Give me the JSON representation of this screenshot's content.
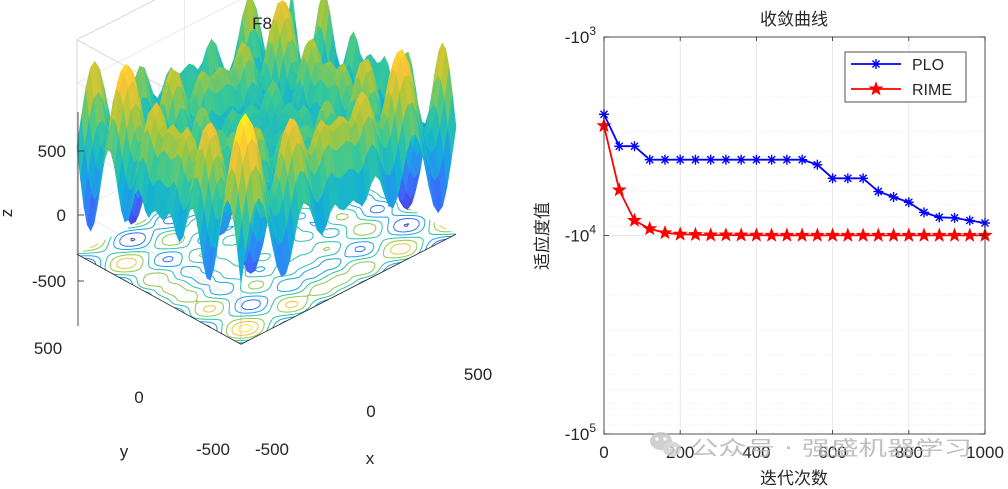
{
  "chart_data": [
    {
      "type": "surface",
      "title": "F8",
      "xlabel": "x",
      "ylabel": "y",
      "zlabel": "z",
      "xlim": [
        -500,
        500
      ],
      "ylim": [
        -500,
        500
      ],
      "zlim": [
        -837.97,
        837.97
      ],
      "x_ticks": [
        "-500",
        "0",
        "500"
      ],
      "y_ticks": [
        "-500",
        "0",
        "500"
      ],
      "z_ticks": [
        "-500",
        "0",
        "500"
      ],
      "function": "z = -x*sin(sqrt(|x|)) - y*sin(sqrt(|y|)) (Schwefel), surface with contour projection on floor",
      "colormap": "parula"
    },
    {
      "type": "line",
      "title": "收敛曲线",
      "xlabel": "迭代次数",
      "ylabel": "适应度值",
      "xlim": [
        0,
        1000
      ],
      "x_ticks": [
        "0",
        "200",
        "400",
        "600",
        "800",
        "1000"
      ],
      "y_ticks": [
        "-10^3",
        "-10^4",
        "-10^5"
      ],
      "y_scale": "log (negative values, magnitude increasing downward)",
      "grid": true,
      "legend_position": "top-right",
      "x": [
        0,
        40,
        80,
        120,
        160,
        200,
        240,
        280,
        320,
        360,
        400,
        440,
        480,
        520,
        560,
        600,
        640,
        680,
        720,
        760,
        800,
        840,
        880,
        920,
        960,
        1000
      ],
      "series": [
        {
          "name": "PLO",
          "color": "#0000ff",
          "marker": "asterisk",
          "values": [
            -2450,
            -3550,
            -3550,
            -4150,
            -4150,
            -4150,
            -4150,
            -4150,
            -4150,
            -4150,
            -4150,
            -4150,
            -4150,
            -4150,
            -4400,
            -5150,
            -5150,
            -5150,
            -6000,
            -6400,
            -6800,
            -7650,
            -8100,
            -8150,
            -8400,
            -8650
          ]
        },
        {
          "name": "RIME",
          "color": "#ff0000",
          "marker": "pentagram",
          "values": [
            -2800,
            -5900,
            -8400,
            -9250,
            -9700,
            -9850,
            -9900,
            -9950,
            -9950,
            -9960,
            -9970,
            -9980,
            -9980,
            -9980,
            -9985,
            -9990,
            -9990,
            -9990,
            -9990,
            -9990,
            -9990,
            -9990,
            -9990,
            -9990,
            -9990,
            -9990
          ]
        }
      ]
    }
  ],
  "watermark": {
    "text": "公众号 · 强盛机器学习",
    "color": "#b4b4b4"
  }
}
